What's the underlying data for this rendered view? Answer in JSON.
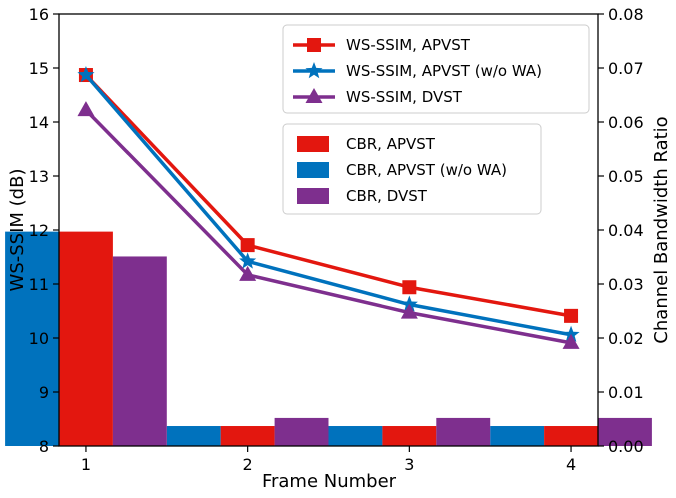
{
  "chart_data": {
    "type": "bar+line",
    "title": "",
    "xlabel": "Frame Number",
    "ylabel_left": "WS-SSIM (dB)",
    "ylabel_right": "Channel Bandwidth Ratio",
    "categories": [
      1,
      2,
      3,
      4
    ],
    "ylim_left": [
      8,
      16
    ],
    "yticks_left": [
      8,
      9,
      10,
      11,
      12,
      13,
      14,
      15,
      16
    ],
    "ylim_right": [
      0.0,
      0.08
    ],
    "yticks_right": [
      "0.00",
      "0.01",
      "0.02",
      "0.03",
      "0.04",
      "0.05",
      "0.06",
      "0.07",
      "0.08"
    ],
    "bar_series": [
      {
        "name": "CBR, APVST (w/o WA)",
        "color": "#0072BD",
        "values": [
          0.0397,
          0.0037,
          0.0037,
          0.0037
        ]
      },
      {
        "name": "CBR, APVST",
        "color": "#E3170F",
        "values": [
          0.0397,
          0.0037,
          0.0037,
          0.0037
        ]
      },
      {
        "name": "CBR, DVST",
        "color": "#7E2F8E",
        "values": [
          0.0351,
          0.0052,
          0.0052,
          0.0052
        ]
      }
    ],
    "line_series": [
      {
        "name": "WS-SSIM, APVST",
        "color": "#E3170F",
        "marker": "square",
        "values": [
          14.87,
          11.72,
          10.94,
          10.41
        ]
      },
      {
        "name": "WS-SSIM, APVST (w/o WA)",
        "color": "#0072BD",
        "marker": "star",
        "values": [
          14.87,
          11.42,
          10.62,
          10.06
        ]
      },
      {
        "name": "WS-SSIM, DVST",
        "color": "#7E2F8E",
        "marker": "triangle",
        "values": [
          14.22,
          11.17,
          10.47,
          9.91
        ]
      }
    ],
    "legend_lines": [
      "WS-SSIM, APVST",
      "WS-SSIM, APVST (w/o WA)",
      "WS-SSIM, DVST"
    ],
    "legend_bars": [
      "CBR, APVST",
      "CBR, APVST (w/o WA)",
      "CBR, DVST"
    ]
  }
}
